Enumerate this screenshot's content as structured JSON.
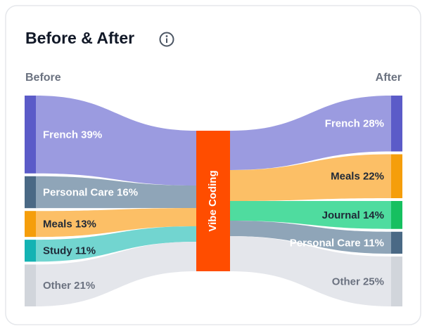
{
  "chart_data": {
    "type": "sankey",
    "title": "Before & After",
    "left_label": "Before",
    "right_label": "After",
    "center": {
      "label": "Vibe Coding",
      "color": "#ff4d00"
    },
    "sources": [
      {
        "label": "French 39%",
        "value": 39,
        "color": "#5b5bc8",
        "flow_color": "#9b9be0",
        "text_color": "#ffffff"
      },
      {
        "label": "Personal Care 16%",
        "value": 16,
        "color": "#4a6985",
        "flow_color": "#8fa5b8",
        "text_color": "#ffffff"
      },
      {
        "label": "Meals 13%",
        "value": 13,
        "color": "#f59e0b",
        "flow_color": "#fcbf66",
        "text_color": "#1f2937"
      },
      {
        "label": "Study 11%",
        "value": 11,
        "color": "#14b3b3",
        "flow_color": "#72d5d0",
        "text_color": "#1f2937"
      },
      {
        "label": "Other 21%",
        "value": 21,
        "color": "#d1d5db",
        "flow_color": "#e4e6eb",
        "text_color": "#6b7280"
      }
    ],
    "targets": [
      {
        "label": "French 28%",
        "value": 28,
        "color": "#5b5bc8",
        "flow_color": "#9b9be0",
        "text_color": "#ffffff"
      },
      {
        "label": "Meals 22%",
        "value": 22,
        "color": "#f59e0b",
        "flow_color": "#fcbf66",
        "text_color": "#1f2937"
      },
      {
        "label": "Journal 14%",
        "value": 14,
        "color": "#16c060",
        "flow_color": "#4fdc9f",
        "text_color": "#1f2937"
      },
      {
        "label": "Personal Care 11%",
        "value": 11,
        "color": "#4a6985",
        "flow_color": "#8fa5b8",
        "text_color": "#ffffff"
      },
      {
        "label": "Other 25%",
        "value": 25,
        "color": "#d1d5db",
        "flow_color": "#e4e6eb",
        "text_color": "#6b7280"
      }
    ]
  }
}
